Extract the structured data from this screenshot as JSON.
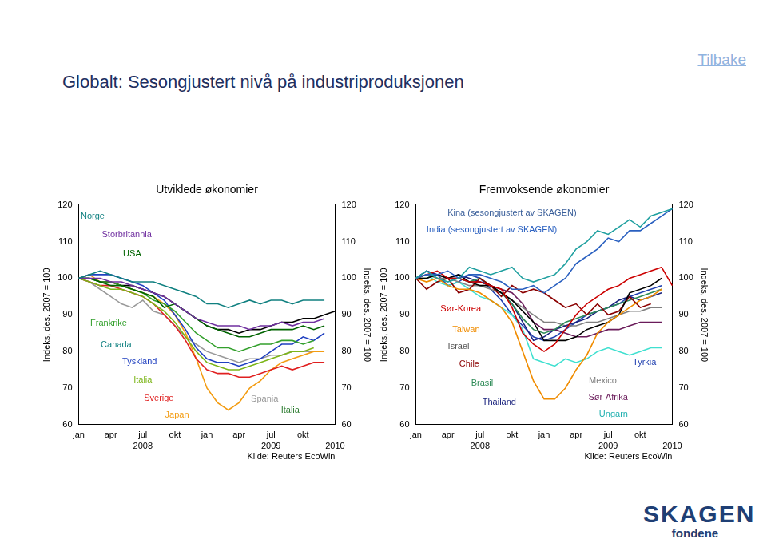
{
  "page": {
    "title": "Globalt: Sesongjustert nivå på industriproduksjonen",
    "link": "Tilbake",
    "logo": {
      "name": "SKAGEN",
      "sub": "fondene"
    }
  },
  "chart_data": [
    {
      "type": "line",
      "title": "Utviklede økonomier",
      "source": "Kilde: Reuters EcoWin",
      "y_axis_title": "Indeks, des. 2007 = 100",
      "categories": [
        "jan",
        null,
        null,
        "apr",
        null,
        null,
        "jul",
        null,
        null,
        "okt",
        null,
        null,
        "jan",
        null,
        null,
        "apr",
        null,
        null,
        "jul",
        null,
        null,
        "okt",
        null,
        null,
        null
      ],
      "year_labels": [
        {
          "x": 6,
          "label": "2008"
        },
        {
          "x": 18,
          "label": "2009"
        },
        {
          "x": 24,
          "label": "2010"
        }
      ],
      "ylim": [
        60,
        120
      ],
      "yticks": [
        60,
        70,
        80,
        90,
        100,
        110,
        120
      ],
      "y2lim": [
        60,
        120
      ],
      "y2ticks": [
        60,
        70,
        80,
        90,
        100,
        110,
        120
      ],
      "grid": false,
      "series": [
        {
          "name": "Norge",
          "color": "#108080",
          "values": [
            100,
            101,
            102,
            101,
            100,
            99,
            99,
            99,
            98,
            97,
            96,
            95,
            93,
            93,
            92,
            93,
            94,
            93,
            94,
            94,
            93,
            94,
            94,
            94,
            null
          ]
        },
        {
          "name": "Storbritannia",
          "color": "#7030a0",
          "values": [
            100,
            100,
            100,
            99,
            99,
            98,
            97,
            96,
            95,
            93,
            91,
            89,
            88,
            87,
            87,
            87,
            86,
            87,
            87,
            88,
            87,
            88,
            88,
            89,
            null
          ]
        },
        {
          "name": "USA",
          "color": "#006400",
          "values": [
            100,
            100,
            99,
            98,
            98,
            97,
            96,
            95,
            92,
            93,
            91,
            89,
            87,
            86,
            85,
            84,
            84,
            85,
            86,
            86,
            86,
            87,
            86,
            87,
            null
          ]
        },
        {
          "name": "Frankrike",
          "color": "#33a02c",
          "values": [
            100,
            100,
            99,
            99,
            98,
            97,
            96,
            94,
            93,
            91,
            88,
            85,
            83,
            81,
            81,
            80,
            81,
            82,
            82,
            83,
            83,
            82,
            83,
            null,
            null
          ]
        },
        {
          "name": "Canada",
          "color": "#000000",
          "values": [
            100,
            100,
            99,
            99,
            98,
            98,
            97,
            96,
            95,
            93,
            91,
            89,
            87,
            86,
            86,
            85,
            86,
            86,
            87,
            88,
            88,
            89,
            89,
            90,
            91
          ]
        },
        {
          "name": "Tyskland",
          "color": "#2040c0",
          "values": [
            100,
            101,
            101,
            101,
            100,
            99,
            98,
            96,
            94,
            90,
            86,
            81,
            78,
            77,
            77,
            76,
            77,
            78,
            80,
            82,
            82,
            84,
            83,
            85,
            null
          ]
        },
        {
          "name": "Italia",
          "color": "#7cb518",
          "values": [
            100,
            99,
            98,
            97,
            97,
            96,
            95,
            93,
            91,
            88,
            84,
            80,
            77,
            76,
            75,
            75,
            76,
            77,
            78,
            79,
            80,
            80,
            81,
            null,
            null
          ]
        },
        {
          "name": "Sverige",
          "color": "#e02020",
          "values": [
            100,
            99,
            98,
            98,
            97,
            96,
            95,
            93,
            90,
            87,
            83,
            78,
            75,
            74,
            74,
            73,
            73,
            74,
            75,
            76,
            75,
            76,
            77,
            77,
            null
          ]
        },
        {
          "name": "Japan",
          "color": "#f39c12",
          "values": [
            100,
            101,
            99,
            99,
            98,
            97,
            96,
            95,
            93,
            90,
            85,
            78,
            70,
            66,
            64,
            66,
            70,
            72,
            75,
            77,
            78,
            79,
            80,
            80,
            null
          ]
        },
        {
          "name": "Spania",
          "color": "#999999",
          "values": [
            100,
            99,
            97,
            95,
            93,
            92,
            94,
            91,
            90,
            87,
            84,
            82,
            80,
            79,
            78,
            77,
            78,
            78,
            79,
            79,
            80,
            80,
            80,
            null,
            null
          ]
        }
      ],
      "annotations": [
        {
          "text": "Norge",
          "color": "#108080",
          "x": 1.3,
          "y": 116.9
        },
        {
          "text": "Storbritannia",
          "color": "#7030a0",
          "x": 4.5,
          "y": 111.9
        },
        {
          "text": "USA",
          "color": "#006400",
          "x": 5,
          "y": 106.6
        },
        {
          "text": "Frankrike",
          "color": "#33a02c",
          "x": 2.8,
          "y": 87.7
        },
        {
          "text": "Canada",
          "color": "#108080",
          "x": 3.5,
          "y": 81.7
        },
        {
          "text": "Tyskland",
          "color": "#2040c0",
          "x": 5.7,
          "y": 77.2
        },
        {
          "text": "Italia",
          "color": "#7cb518",
          "x": 6,
          "y": 72.2
        },
        {
          "text": "Sverige",
          "color": "#e02020",
          "x": 7.5,
          "y": 67.1
        },
        {
          "text": "Japan",
          "color": "#f39c12",
          "x": 9.2,
          "y": 62.6
        },
        {
          "text": "Spania",
          "color": "#999999",
          "x": 17.4,
          "y": 66.9
        },
        {
          "text": "Italia",
          "color": "#2e7d32",
          "x": 19.8,
          "y": 63.8
        }
      ]
    },
    {
      "type": "line",
      "title": "Fremvoksende økonomier",
      "source": "Kilde: Reuters EcoWin",
      "y_axis_title": "Indeks, des. 2007 = 100",
      "categories": [
        "jan",
        null,
        null,
        "apr",
        null,
        null,
        "jul",
        null,
        null,
        "okt",
        null,
        null,
        "jan",
        null,
        null,
        "apr",
        null,
        null,
        "jul",
        null,
        null,
        "okt",
        null,
        null,
        null
      ],
      "year_labels": [
        {
          "x": 6,
          "label": "2008"
        },
        {
          "x": 18,
          "label": "2009"
        },
        {
          "x": 24,
          "label": "2010"
        }
      ],
      "ylim": [
        60,
        120
      ],
      "yticks": [
        60,
        70,
        80,
        90,
        100,
        110,
        120
      ],
      "y2lim": [
        60,
        120
      ],
      "y2ticks": [
        60,
        70,
        80,
        90,
        100,
        110,
        120
      ],
      "grid": false,
      "series": [
        {
          "name": "Kina (sesongjustert av SKAGEN)",
          "color": "#20a0a0",
          "values": [
            100,
            102,
            100,
            99,
            100,
            103,
            102,
            101,
            102,
            103,
            100,
            99,
            100,
            101,
            104,
            108,
            110,
            113,
            112,
            114,
            116,
            114,
            117,
            118,
            119
          ]
        },
        {
          "name": "India (sesongjustert av SKAGEN)",
          "color": "#2a60c0",
          "values": [
            100,
            101,
            101,
            102,
            100,
            101,
            101,
            100,
            99,
            97,
            97,
            98,
            96,
            98,
            100,
            104,
            106,
            108,
            111,
            110,
            113,
            113,
            115,
            117,
            119
          ]
        },
        {
          "name": "Sør-Korea",
          "color": "#cc0000",
          "values": [
            100,
            101,
            102,
            100,
            100,
            99,
            99,
            98,
            97,
            92,
            85,
            82,
            80,
            82,
            86,
            90,
            93,
            95,
            97,
            98,
            100,
            101,
            102,
            103,
            98
          ]
        },
        {
          "name": "Taiwan",
          "color": "#f08c00",
          "values": [
            100,
            99,
            100,
            98,
            97,
            97,
            96,
            94,
            92,
            88,
            80,
            72,
            67,
            67,
            70,
            75,
            79,
            85,
            88,
            90,
            92,
            94,
            95,
            97,
            null
          ]
        },
        {
          "name": "Israel",
          "color": "#000000",
          "values": [
            100,
            100,
            101,
            100,
            101,
            99,
            98,
            98,
            96,
            94,
            91,
            88,
            83,
            83,
            83,
            84,
            86,
            87,
            88,
            90,
            96,
            97,
            98,
            100,
            null
          ]
        },
        {
          "name": "Chile",
          "color": "#8b0000",
          "values": [
            100,
            97,
            99,
            100,
            96,
            97,
            100,
            98,
            95,
            98,
            96,
            97,
            96,
            94,
            92,
            93,
            90,
            93,
            90,
            91,
            95,
            92,
            93,
            null,
            null
          ]
        },
        {
          "name": "Brasil",
          "color": "#2e8b57",
          "values": [
            100,
            100,
            101,
            100,
            100,
            99,
            100,
            98,
            96,
            93,
            89,
            86,
            85,
            86,
            88,
            89,
            90,
            91,
            92,
            93,
            94,
            95,
            96,
            97,
            null
          ]
        },
        {
          "name": "Thailand",
          "color": "#1a237e",
          "values": [
            100,
            102,
            101,
            100,
            101,
            100,
            99,
            98,
            96,
            93,
            88,
            83,
            84,
            86,
            87,
            88,
            89,
            91,
            92,
            94,
            95,
            94,
            95,
            96,
            null
          ]
        },
        {
          "name": "Mexico",
          "color": "#808080",
          "values": [
            100,
            101,
            100,
            100,
            99,
            98,
            98,
            97,
            96,
            94,
            92,
            90,
            88,
            88,
            87,
            87,
            88,
            88,
            89,
            90,
            91,
            91,
            92,
            92,
            null
          ]
        },
        {
          "name": "Sør-Afrika",
          "color": "#6a1b5a",
          "values": [
            100,
            101,
            101,
            100,
            100,
            99,
            99,
            98,
            97,
            96,
            93,
            88,
            86,
            86,
            85,
            84,
            84,
            85,
            86,
            86,
            87,
            88,
            88,
            88,
            null
          ]
        },
        {
          "name": "Ungarn",
          "color": "#40e0d0",
          "values": [
            100,
            101,
            99,
            98,
            99,
            97,
            95,
            94,
            92,
            90,
            86,
            78,
            77,
            76,
            78,
            77,
            78,
            80,
            81,
            80,
            79,
            80,
            81,
            81,
            null
          ]
        },
        {
          "name": "Tyrkia",
          "color": "#2040b0",
          "values": [
            100,
            102,
            101,
            98,
            99,
            101,
            100,
            97,
            94,
            90,
            87,
            84,
            83,
            84,
            86,
            88,
            90,
            91,
            92,
            93,
            95,
            96,
            97,
            98,
            null
          ]
        }
      ],
      "annotations": [
        {
          "text": "Kina (sesongjustert av SKAGEN)",
          "color": "#3a5f9a",
          "x": 9,
          "y": 117.8
        },
        {
          "text": "India (sesongjustert av SKAGEN)",
          "color": "#2a60c0",
          "x": 7.1,
          "y": 113.3
        },
        {
          "text": "Sør-Korea",
          "color": "#cc0000",
          "x": 4.2,
          "y": 91.5
        },
        {
          "text": "Taiwan",
          "color": "#f08c00",
          "x": 4.7,
          "y": 86
        },
        {
          "text": "Israel",
          "color": "#555555",
          "x": 4,
          "y": 81.4
        },
        {
          "text": "Chile",
          "color": "#8b0000",
          "x": 5,
          "y": 76.6
        },
        {
          "text": "Brasil",
          "color": "#2e8b57",
          "x": 6.2,
          "y": 71.3
        },
        {
          "text": "Thailand",
          "color": "#1a237e",
          "x": 7.8,
          "y": 66
        },
        {
          "text": "Mexico",
          "color": "#808080",
          "x": 17.5,
          "y": 72
        },
        {
          "text": "Sør-Afrika",
          "color": "#6a1b5a",
          "x": 18,
          "y": 67.4
        },
        {
          "text": "Ungarn",
          "color": "#20b0b0",
          "x": 18.5,
          "y": 62.9
        },
        {
          "text": "Tyrkia",
          "color": "#2040b0",
          "x": 21.4,
          "y": 77
        }
      ]
    }
  ]
}
